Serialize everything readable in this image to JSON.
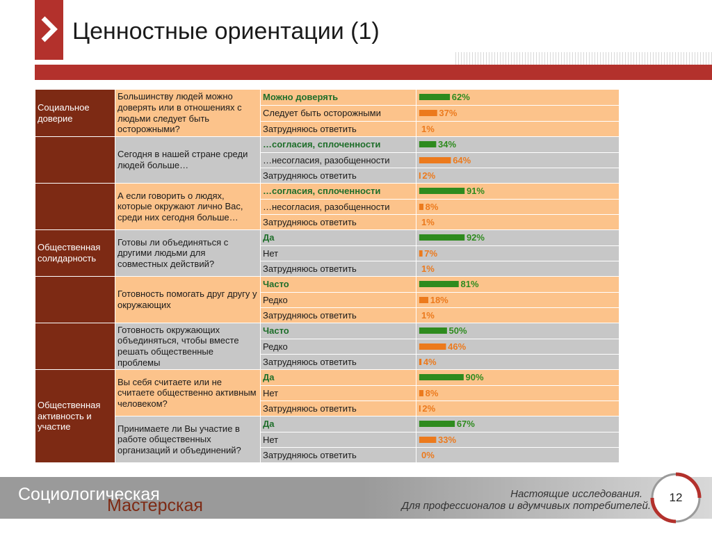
{
  "slide": {
    "title": "Ценностные ориентации (1)",
    "page_number": "12"
  },
  "footer": {
    "brand_line1": "Социологическая",
    "brand_line2": "Мастерская",
    "tagline1": "Настоящие исследования.",
    "tagline2": "Для профессионалов и вдумчивых потребителей."
  },
  "colors": {
    "accent": "#b3312c",
    "category_bg": "#7d2a14",
    "peach": "#fcc38b",
    "gray": "#c7c7c7",
    "green": "#2e8b1e",
    "orange": "#ec7a1d"
  },
  "categories": [
    {
      "label": "Социальное доверие"
    },
    {
      "label": ""
    },
    {
      "label": ""
    },
    {
      "label": "Общественная солидарность"
    },
    {
      "label": ""
    },
    {
      "label": ""
    },
    {
      "label": "Общественная активность и участие"
    }
  ],
  "questions": [
    {
      "text": "Большинству людей можно доверять или в отношениях с людьми следует быть осторожными?",
      "answers": [
        {
          "label": "Можно доверять",
          "bars": "IIIIIIIIIIIIIIIIIIIIIIIIIIIIIII",
          "pct": "62%"
        },
        {
          "label": "Следует быть осторожными",
          "bars": "IIIIIIIIIIIIIIIIII",
          "pct": "37%"
        },
        {
          "label": "Затрудняюсь ответить",
          "bars": "",
          "pct": "1%"
        }
      ]
    },
    {
      "text": "Сегодня в нашей стране среди людей больше…",
      "answers": [
        {
          "label": "…согласия, сплоченности",
          "bars": "IIIIIIIIIIIIIIIII",
          "pct": "34%"
        },
        {
          "label": "…несогласия, разобщенности",
          "bars": "IIIIIIIIIIIIIIIIIIIIIIIIIIIIIIII",
          "pct": "64%"
        },
        {
          "label": "Затрудняюсь ответить",
          "bars": "I",
          "pct": "2%"
        }
      ]
    },
    {
      "text": "А если говорить о людях, которые окружают лично Вас, среди них сегодня больше…",
      "answers": [
        {
          "label": "…согласия, сплоченности",
          "bars": "IIIIIIIIIIIIIIIIIIIIIIIIIIIIIIIIIIIIIIIIIIIIII",
          "pct": "91%"
        },
        {
          "label": "…несогласия, разобщенности",
          "bars": "IIII",
          "pct": "8%"
        },
        {
          "label": "Затрудняюсь ответить",
          "bars": "",
          "pct": "1%"
        }
      ]
    },
    {
      "text": "Готовы ли объединяться с другими людьми для совместных действий?",
      "answers": [
        {
          "label": "Да",
          "bars": "IIIIIIIIIIIIIIIIIIIIIIIIIIIIIIIIIIIIIIIIIIIIII",
          "pct": "92%"
        },
        {
          "label": "Нет",
          "bars": "III",
          "pct": "7%"
        },
        {
          "label": "Затрудняюсь ответить",
          "bars": "",
          "pct": "1%"
        }
      ]
    },
    {
      "text": "Готовность помогать друг другу у окружающих",
      "answers": [
        {
          "label": "Часто",
          "bars": "IIIIIIIIIIIIIIIIIIIIIIIIIIIIIIIIIIIIIIII",
          "pct": "81%"
        },
        {
          "label": "Редко",
          "bars": "IIIIIIIII",
          "pct": "18%"
        },
        {
          "label": "Затрудняюсь ответить",
          "bars": "",
          "pct": "1%"
        }
      ]
    },
    {
      "text": "Готовность окружающих объединяться, чтобы вместе решать общественные проблемы",
      "answers": [
        {
          "label": "Часто",
          "bars": "IIIIIIIIIIIIIIIIIIIIIIIIIIII",
          "pct": "50%"
        },
        {
          "label": "Редко",
          "bars": "IIIIIIIIIIIIIIIIIIIIIIIIIII",
          "pct": "46%"
        },
        {
          "label": "Затрудняюсь ответить",
          "bars": "II",
          "pct": "4%"
        }
      ]
    },
    {
      "text": "Вы себя считаете или не считаете общественно активным человеком?",
      "answers": [
        {
          "label": "Да",
          "bars": "IIIIIIIIIIIIIIIIIIIIIIIIIIIIIIIIIIIIIIIIIIIII",
          "pct": "90%"
        },
        {
          "label": "Нет",
          "bars": "IIII",
          "pct": "8%"
        },
        {
          "label": "Затрудняюсь ответить",
          "bars": "I",
          "pct": "2%"
        }
      ]
    },
    {
      "text": "Принимаете ли Вы участие в работе общественных организаций и объединений?",
      "answers": [
        {
          "label": "Да",
          "bars": "IIIIIIIIIIIIIIIIIIIIIIIIIIIIIIIIIIII",
          "pct": "67%"
        },
        {
          "label": "Нет",
          "bars": "IIIIIIIIIIIIIIIII",
          "pct": "33%"
        },
        {
          "label": "Затрудняюсь ответить",
          "bars": "",
          "pct": "0%"
        }
      ]
    }
  ]
}
